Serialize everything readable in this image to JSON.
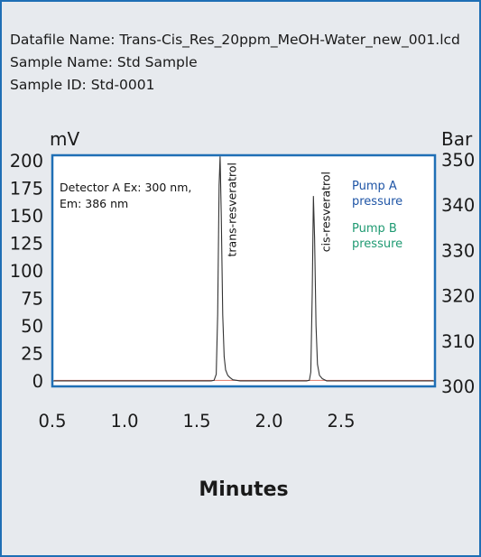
{
  "header": {
    "datafile": "Datafile Name: Trans-Cis_Res_20ppm_MeOH-Water_new_001.lcd",
    "sample_name": "Sample Name: Std Sample",
    "sample_id": "Sample ID: Std-0001"
  },
  "chart_data": {
    "type": "line",
    "title": "",
    "xlabel": "Minutes",
    "ylabel": "mV",
    "y2label": "Bar",
    "xlim": [
      0.5,
      3.15
    ],
    "ylim": [
      -5,
      205
    ],
    "y2lim": [
      300,
      351
    ],
    "x_ticks": [
      "0.5",
      "1.0",
      "1.5",
      "2.0",
      "2.5"
    ],
    "x_tick_values": [
      0.5,
      1.0,
      1.5,
      2.0,
      2.5
    ],
    "y_ticks": [
      "0",
      "25",
      "50",
      "75",
      "100",
      "125",
      "150",
      "175",
      "200"
    ],
    "y_tick_values": [
      0,
      25,
      50,
      75,
      100,
      125,
      150,
      175,
      200
    ],
    "y2_ticks": [
      "300",
      "310",
      "320",
      "330",
      "340",
      "350"
    ],
    "y2_tick_values": [
      300,
      310,
      320,
      330,
      340,
      350
    ],
    "grid": false,
    "legend_placement": "top-right",
    "annotations": {
      "detector_line1": "Detector A Ex: 300 nm,",
      "detector_line2": "Em: 386 nm"
    },
    "peaks": [
      {
        "name": "trans-resveratrol",
        "x": 1.66,
        "y": 204
      },
      {
        "name": "cis-resveratrol",
        "x": 2.31,
        "y": 168
      }
    ],
    "legend": [
      {
        "line1": "Pump A",
        "line2": "pressure",
        "color": "#1f55a6"
      },
      {
        "line1": "Pump B",
        "line2": "pressure",
        "color": "#1f9a72"
      }
    ],
    "series": [
      {
        "x": [
          0.5,
          1.0,
          1.5,
          1.6,
          1.62,
          1.635,
          1.645,
          1.655,
          1.662,
          1.67,
          1.68,
          1.69,
          1.7,
          1.715,
          1.73,
          1.75,
          1.8,
          2.0,
          2.2,
          2.26,
          2.28,
          2.29,
          2.3,
          2.308,
          2.316,
          2.326,
          2.336,
          2.35,
          2.37,
          2.4,
          2.5,
          2.8,
          3.15
        ],
        "y": [
          0,
          0,
          0,
          0,
          0.5,
          6,
          60,
          178,
          204,
          150,
          60,
          22,
          10,
          5,
          3,
          1,
          0,
          0,
          0,
          0,
          0.5,
          8,
          80,
          168,
          130,
          50,
          15,
          5,
          2,
          0,
          0,
          0,
          0
        ]
      }
    ],
    "colors": {
      "frame": "#1f6fb5",
      "plot_border": "#1f6fb5",
      "trace": "#333333",
      "baseline": "#e07a6a",
      "pump_a": "#1f55a6",
      "pump_b": "#1f9a72"
    }
  }
}
